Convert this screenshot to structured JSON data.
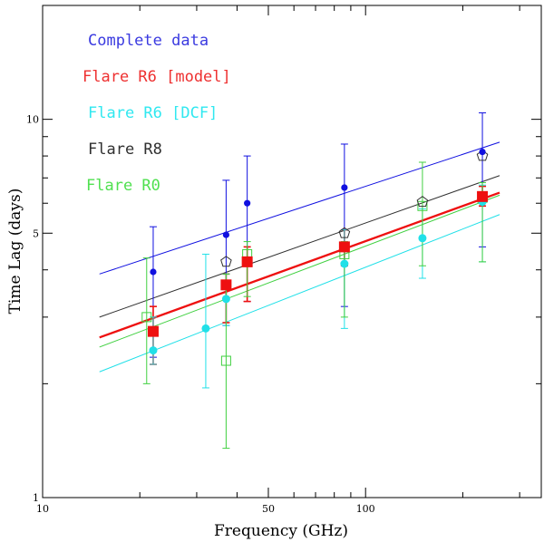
{
  "chart_data": {
    "type": "scatter",
    "xscale": "log",
    "yscale": "log",
    "xlim": [
      10,
      350
    ],
    "ylim": [
      1,
      20
    ],
    "xlabel": "Frequency (GHz)",
    "ylabel": "Time Lag (days)",
    "x_ticks": [
      {
        "value": 10,
        "label": "10"
      },
      {
        "value": 50,
        "label": "50"
      },
      {
        "value": 100,
        "label": "100"
      }
    ],
    "y_ticks": [
      {
        "value": 1,
        "label": "1"
      },
      {
        "value": 5,
        "label": "5"
      },
      {
        "value": 10,
        "label": "10"
      }
    ],
    "legend": [
      {
        "label": "Complete data",
        "color": "#3a3ae0"
      },
      {
        "label": "Flare R6 [model]",
        "color": "#ee3030"
      },
      {
        "label": "Flare R6 [DCF]",
        "color": "#30e8f0"
      },
      {
        "label": "Flare R8",
        "color": "#303030"
      },
      {
        "label": "Flare R0",
        "color": "#50e050"
      }
    ],
    "series": [
      {
        "name": "Complete data",
        "color": "#1010e0",
        "marker": "dot",
        "points": [
          {
            "x": 22,
            "y": 3.95,
            "lo": 2.35,
            "hi": 5.2
          },
          {
            "x": 37,
            "y": 4.95,
            "lo": 2.85,
            "hi": 6.9
          },
          {
            "x": 43,
            "y": 6.0,
            "lo": 3.3,
            "hi": 8.0
          },
          {
            "x": 86,
            "y": 6.6,
            "lo": 3.2,
            "hi": 8.6
          },
          {
            "x": 230,
            "y": 8.2,
            "lo": 4.6,
            "hi": 10.4
          }
        ],
        "fit": {
          "x1": 15,
          "y1": 3.9,
          "x2": 260,
          "y2": 8.7,
          "width": 1
        }
      },
      {
        "name": "Flare R6 [model]",
        "color": "#ee1010",
        "marker": "square",
        "points": [
          {
            "x": 22,
            "y": 2.75,
            "lo": 2.25,
            "hi": 3.2
          },
          {
            "x": 37,
            "y": 3.65,
            "lo": 2.9,
            "hi": 3.9
          },
          {
            "x": 43,
            "y": 4.2,
            "lo": 3.3,
            "hi": 4.6
          },
          {
            "x": 86,
            "y": 4.6,
            "lo": 4.1,
            "hi": 5.1
          },
          {
            "x": 230,
            "y": 6.25,
            "lo": 5.9,
            "hi": 6.65
          }
        ],
        "fit": {
          "x1": 15,
          "y1": 2.65,
          "x2": 260,
          "y2": 6.4,
          "width": 2.3
        }
      },
      {
        "name": "Flare R6 [DCF]",
        "color": "#20e0e8",
        "marker": "dot",
        "points": [
          {
            "x": 22,
            "y": 2.45,
            "lo": 2.25,
            "hi": 3.0
          },
          {
            "x": 32,
            "y": 2.8,
            "lo": 1.95,
            "hi": 4.4
          },
          {
            "x": 37,
            "y": 3.35,
            "lo": 2.85,
            "hi": 3.9
          },
          {
            "x": 86,
            "y": 4.15,
            "lo": 2.8,
            "hi": 5.1
          },
          {
            "x": 150,
            "y": 4.85,
            "lo": 3.8,
            "hi": 5.8
          },
          {
            "x": 230,
            "y": 6.05,
            "lo": 4.2,
            "hi": 6.7
          }
        ],
        "fit": {
          "x1": 15,
          "y1": 2.15,
          "x2": 260,
          "y2": 5.6,
          "width": 1
        }
      },
      {
        "name": "Flare R8",
        "color": "#303030",
        "marker": "pentagon",
        "points": [
          {
            "x": 37,
            "y": 4.2
          },
          {
            "x": 86,
            "y": 5.0
          },
          {
            "x": 150,
            "y": 6.05
          },
          {
            "x": 230,
            "y": 8.0
          }
        ],
        "fit": {
          "x1": 15,
          "y1": 3.0,
          "x2": 260,
          "y2": 7.1,
          "width": 1
        }
      },
      {
        "name": "Flare R0",
        "color": "#40d040",
        "marker": "open-square",
        "points": [
          {
            "x": 21,
            "y": 3.0,
            "lo": 2.0,
            "hi": 4.3
          },
          {
            "x": 37,
            "y": 2.3,
            "lo": 1.35,
            "hi": 3.9
          },
          {
            "x": 43,
            "y": 4.4,
            "lo": 3.4,
            "hi": 4.75
          },
          {
            "x": 86,
            "y": 4.4,
            "lo": 3.0,
            "hi": 4.75
          },
          {
            "x": 150,
            "y": 5.9,
            "lo": 4.1,
            "hi": 7.7
          },
          {
            "x": 230,
            "y": 6.2,
            "lo": 4.2,
            "hi": 6.8
          }
        ],
        "fit": {
          "x1": 15,
          "y1": 2.5,
          "x2": 260,
          "y2": 6.3,
          "width": 1
        }
      }
    ]
  }
}
